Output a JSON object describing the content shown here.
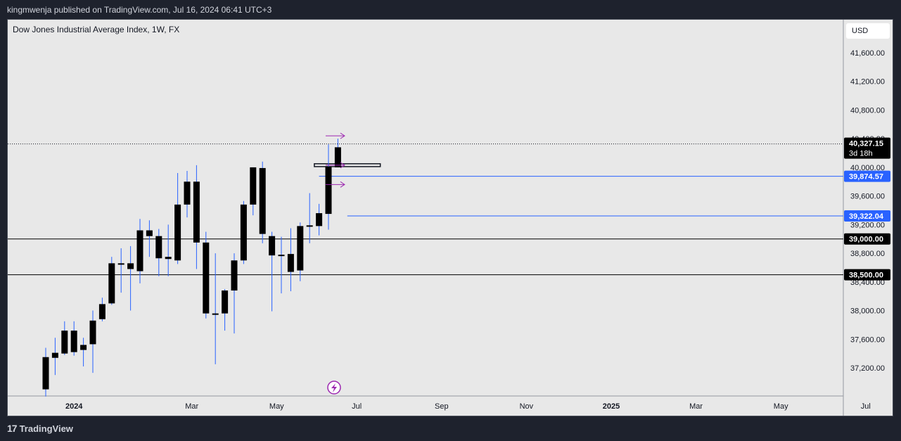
{
  "header": {
    "publisher_text": "kingmwenja published on TradingView.com, Jul 16, 2024 06:41 UTC+3"
  },
  "legend": {
    "title": "Dow Jones Industrial Average Index, 1W, FX"
  },
  "currency": "USD",
  "footer": {
    "brand": "TradingView",
    "logo": "17"
  },
  "colors": {
    "background": "#e8e8e8",
    "candle": "#000000",
    "wick": "#2962ff",
    "hline_blue": "#2962ff",
    "arrow": "#9c27b0",
    "dark_ui": "#1e222d"
  },
  "chart_data": {
    "type": "candlestick",
    "title": "Dow Jones Industrial Average Index, 1W, FX",
    "ylim": [
      36850,
      41950
    ],
    "y_ticks": [
      {
        "value": 37200,
        "label": "37,200.00"
      },
      {
        "value": 37600,
        "label": "37,600.00"
      },
      {
        "value": 38000,
        "label": "38,000.00"
      },
      {
        "value": 38400,
        "label": "38,400.00"
      },
      {
        "value": 38800,
        "label": "38,800.00"
      },
      {
        "value": 39200,
        "label": "39,200.00"
      },
      {
        "value": 39600,
        "label": "39,600.00"
      },
      {
        "value": 40000,
        "label": "40,000.00"
      },
      {
        "value": 40400,
        "label": "40,400.00"
      },
      {
        "value": 40800,
        "label": "40,800.00"
      },
      {
        "value": 41200,
        "label": "41,200.00"
      },
      {
        "value": 41600,
        "label": "41,600.00"
      }
    ],
    "x_ticks": [
      {
        "label": "2024",
        "bold": true,
        "week": 3
      },
      {
        "label": "Mar",
        "bold": false,
        "week": 15.5
      },
      {
        "label": "May",
        "bold": false,
        "week": 24.5
      },
      {
        "label": "Jul",
        "bold": false,
        "week": 33
      },
      {
        "label": "Sep",
        "bold": false,
        "week": 42
      },
      {
        "label": "Nov",
        "bold": false,
        "week": 51
      },
      {
        "label": "2025",
        "bold": true,
        "week": 60
      },
      {
        "label": "Mar",
        "bold": false,
        "week": 69
      },
      {
        "label": "May",
        "bold": false,
        "week": 78
      },
      {
        "label": "Jul",
        "bold": false,
        "week": 87
      }
    ],
    "candles": [
      {
        "o": 36900,
        "h": 37480,
        "l": 36800,
        "c": 37350
      },
      {
        "o": 37340,
        "h": 37620,
        "l": 37100,
        "c": 37410
      },
      {
        "o": 37400,
        "h": 37850,
        "l": 37380,
        "c": 37720
      },
      {
        "o": 37420,
        "h": 37850,
        "l": 37370,
        "c": 37720
      },
      {
        "o": 37450,
        "h": 37620,
        "l": 37220,
        "c": 37520
      },
      {
        "o": 37530,
        "h": 38000,
        "l": 37130,
        "c": 37860
      },
      {
        "o": 37880,
        "h": 38180,
        "l": 37850,
        "c": 38090
      },
      {
        "o": 38100,
        "h": 38750,
        "l": 38080,
        "c": 38660
      },
      {
        "o": 38660,
        "h": 38870,
        "l": 38250,
        "c": 38660
      },
      {
        "o": 38580,
        "h": 38900,
        "l": 38000,
        "c": 38660
      },
      {
        "o": 38550,
        "h": 39280,
        "l": 38380,
        "c": 39120
      },
      {
        "o": 39120,
        "h": 39260,
        "l": 38750,
        "c": 39040
      },
      {
        "o": 39040,
        "h": 39140,
        "l": 38480,
        "c": 38730
      },
      {
        "o": 38720,
        "h": 39200,
        "l": 38480,
        "c": 38750
      },
      {
        "o": 38700,
        "h": 39920,
        "l": 38650,
        "c": 39480
      },
      {
        "o": 39480,
        "h": 39950,
        "l": 39300,
        "c": 39800
      },
      {
        "o": 39800,
        "h": 40030,
        "l": 38580,
        "c": 38950
      },
      {
        "o": 38950,
        "h": 39100,
        "l": 37890,
        "c": 37960
      },
      {
        "o": 37960,
        "h": 38800,
        "l": 37250,
        "c": 37960
      },
      {
        "o": 37960,
        "h": 38300,
        "l": 37720,
        "c": 38280
      },
      {
        "o": 38280,
        "h": 38800,
        "l": 37680,
        "c": 38700
      },
      {
        "o": 38700,
        "h": 39530,
        "l": 38650,
        "c": 39480
      },
      {
        "o": 39480,
        "h": 40000,
        "l": 39330,
        "c": 40000
      },
      {
        "o": 39990,
        "h": 40080,
        "l": 38940,
        "c": 39070
      },
      {
        "o": 39040,
        "h": 39100,
        "l": 37990,
        "c": 38770
      },
      {
        "o": 38760,
        "h": 39030,
        "l": 38240,
        "c": 38780
      },
      {
        "o": 38790,
        "h": 39150,
        "l": 38270,
        "c": 38540
      },
      {
        "o": 38560,
        "h": 39230,
        "l": 38410,
        "c": 39180
      },
      {
        "o": 39180,
        "h": 39640,
        "l": 38940,
        "c": 39190
      },
      {
        "o": 39180,
        "h": 39490,
        "l": 39050,
        "c": 39360
      },
      {
        "o": 39350,
        "h": 40320,
        "l": 39130,
        "c": 40010
      },
      {
        "o": 40000,
        "h": 40400,
        "l": 40000,
        "c": 40280
      }
    ],
    "hlines": [
      {
        "value": 39874.57,
        "label": "39,874.57",
        "color": "#2962ff",
        "start_week": 29
      },
      {
        "value": 39322.04,
        "label": "39,322.04",
        "color": "#2962ff",
        "start_week": 32
      },
      {
        "value": 39000.0,
        "label": "39,000.00",
        "color": "#000000",
        "start_week": 0
      },
      {
        "value": 38500.0,
        "label": "38,500.00",
        "color": "#000000",
        "start_week": 0
      }
    ],
    "last_price": {
      "value": 40327.15,
      "label": "40,327.15",
      "countdown": "3d 18h"
    },
    "arrows": [
      40440,
      40030,
      39760
    ],
    "box": {
      "y1": 40050,
      "y2": 40010,
      "start_week": 28.5,
      "end_week": 35.5
    }
  }
}
